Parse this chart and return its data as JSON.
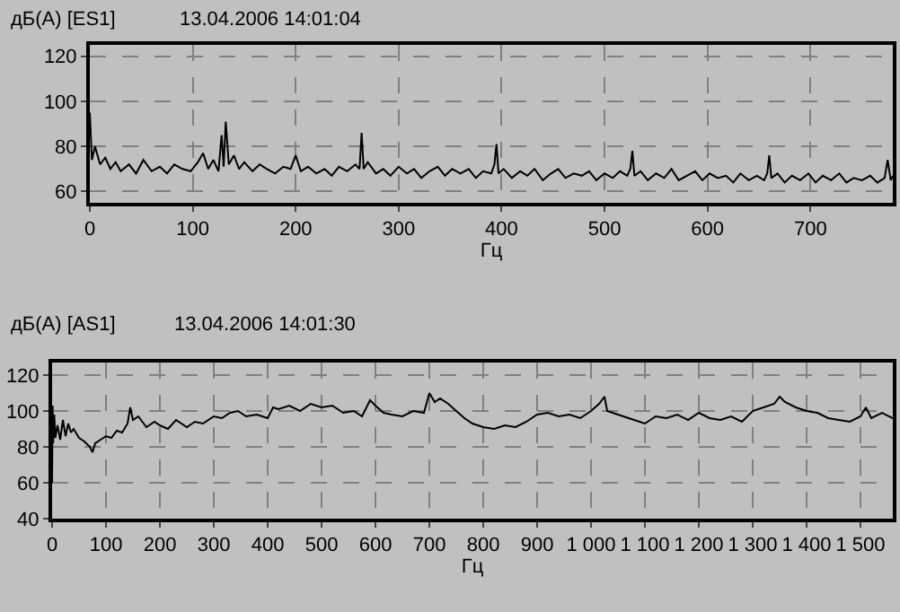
{
  "chart_data": [
    {
      "type": "line",
      "title": "дБ(A) [ES1]",
      "subtitle": "13.04.2006 14:01:04",
      "xlabel": "Гц",
      "xlim": [
        0,
        780
      ],
      "ylim": [
        55,
        125
      ],
      "xticks": [
        0,
        100,
        200,
        300,
        400,
        500,
        600,
        700
      ],
      "yticks": [
        60,
        80,
        100,
        120
      ],
      "grid": true,
      "marker": "none",
      "line_style": "solid",
      "series": [
        {
          "color": "#000000",
          "x": [
            0,
            2,
            5,
            10,
            15,
            20,
            25,
            30,
            38,
            45,
            52,
            60,
            68,
            75,
            82,
            90,
            98,
            105,
            110,
            115,
            120,
            125,
            128,
            130,
            132,
            135,
            140,
            145,
            150,
            158,
            165,
            172,
            180,
            188,
            195,
            200,
            205,
            212,
            220,
            228,
            235,
            242,
            250,
            258,
            262,
            264,
            266,
            270,
            278,
            285,
            292,
            300,
            308,
            315,
            322,
            330,
            338,
            345,
            352,
            360,
            368,
            375,
            382,
            390,
            393,
            395,
            397,
            402,
            410,
            418,
            425,
            432,
            440,
            448,
            455,
            462,
            470,
            478,
            485,
            492,
            500,
            508,
            515,
            522,
            525,
            527,
            529,
            535,
            542,
            550,
            558,
            565,
            572,
            580,
            588,
            595,
            602,
            610,
            618,
            625,
            632,
            640,
            648,
            655,
            658,
            660,
            662,
            668,
            675,
            682,
            690,
            698,
            705,
            712,
            720,
            728,
            735,
            742,
            750,
            758,
            765,
            772,
            775,
            778,
            780
          ],
          "values": [
            95,
            74,
            80,
            72,
            75,
            70,
            73,
            69,
            72,
            68,
            74,
            69,
            71,
            68,
            72,
            70,
            69,
            73,
            77,
            70,
            74,
            69,
            85,
            71,
            91,
            72,
            76,
            70,
            73,
            69,
            72,
            70,
            68,
            71,
            70,
            76,
            69,
            71,
            68,
            70,
            67,
            71,
            69,
            72,
            70,
            86,
            70,
            73,
            68,
            70,
            67,
            71,
            68,
            70,
            66,
            69,
            71,
            67,
            70,
            68,
            70,
            66,
            69,
            68,
            72,
            81,
            68,
            70,
            66,
            69,
            67,
            70,
            65,
            68,
            70,
            66,
            68,
            67,
            69,
            65,
            68,
            66,
            69,
            67,
            70,
            78,
            67,
            69,
            65,
            68,
            66,
            70,
            65,
            67,
            69,
            65,
            68,
            66,
            67,
            64,
            68,
            65,
            67,
            65,
            68,
            76,
            66,
            68,
            64,
            67,
            65,
            68,
            64,
            67,
            65,
            68,
            64,
            66,
            65,
            67,
            64,
            66,
            74,
            65,
            67
          ]
        }
      ]
    },
    {
      "type": "line",
      "title": "дБ(A) [AS1]",
      "subtitle": "13.04.2006 14:01:30",
      "xlabel": "Гц",
      "xlim": [
        0,
        1560
      ],
      "ylim": [
        40,
        127
      ],
      "xticks": [
        0,
        100,
        200,
        300,
        400,
        500,
        600,
        700,
        800,
        900,
        {
          "value": 1000,
          "label": "1 000"
        },
        {
          "value": 1100,
          "label": "1 100"
        },
        {
          "value": 1200,
          "label": "1 200"
        },
        {
          "value": 1300,
          "label": "1 300"
        },
        {
          "value": 1400,
          "label": "1 400"
        },
        {
          "value": 1500,
          "label": "1 500"
        }
      ],
      "yticks": [
        40,
        60,
        80,
        100,
        120
      ],
      "grid": true,
      "marker": "none",
      "line_style": "solid",
      "series": [
        {
          "color": "#000000",
          "x": [
            0,
            1,
            2,
            4,
            6,
            10,
            15,
            20,
            25,
            30,
            35,
            40,
            50,
            60,
            70,
            75,
            80,
            90,
            100,
            110,
            120,
            130,
            140,
            145,
            150,
            160,
            175,
            190,
            200,
            215,
            230,
            250,
            265,
            280,
            300,
            315,
            330,
            345,
            360,
            380,
            400,
            410,
            420,
            440,
            460,
            480,
            500,
            520,
            540,
            560,
            575,
            590,
            600,
            615,
            630,
            650,
            670,
            690,
            700,
            710,
            720,
            735,
            750,
            765,
            780,
            800,
            820,
            840,
            860,
            880,
            900,
            920,
            940,
            960,
            980,
            1000,
            1015,
            1025,
            1030,
            1040,
            1060,
            1080,
            1100,
            1120,
            1140,
            1160,
            1180,
            1200,
            1220,
            1240,
            1260,
            1280,
            1300,
            1320,
            1340,
            1350,
            1360,
            1380,
            1400,
            1420,
            1440,
            1460,
            1480,
            1500,
            1510,
            1520,
            1540,
            1560
          ],
          "values": [
            60,
            103,
            82,
            98,
            85,
            92,
            84,
            95,
            86,
            93,
            88,
            90,
            85,
            83,
            80,
            77,
            82,
            84,
            86,
            85,
            89,
            88,
            93,
            102,
            95,
            97,
            91,
            94,
            92,
            90,
            95,
            91,
            94,
            93,
            97,
            96,
            99,
            100,
            97,
            98,
            96,
            102,
            101,
            103,
            100,
            104,
            102,
            103,
            99,
            100,
            97,
            106,
            103,
            99,
            98,
            97,
            100,
            99,
            110,
            105,
            107,
            104,
            100,
            96,
            93,
            91,
            90,
            92,
            91,
            94,
            98,
            99,
            97,
            98,
            96,
            100,
            104,
            108,
            100,
            99,
            97,
            95,
            93,
            97,
            96,
            98,
            95,
            99,
            96,
            95,
            97,
            94,
            100,
            102,
            104,
            108,
            105,
            102,
            100,
            99,
            96,
            95,
            94,
            97,
            102,
            96,
            99,
            96
          ]
        }
      ]
    }
  ]
}
